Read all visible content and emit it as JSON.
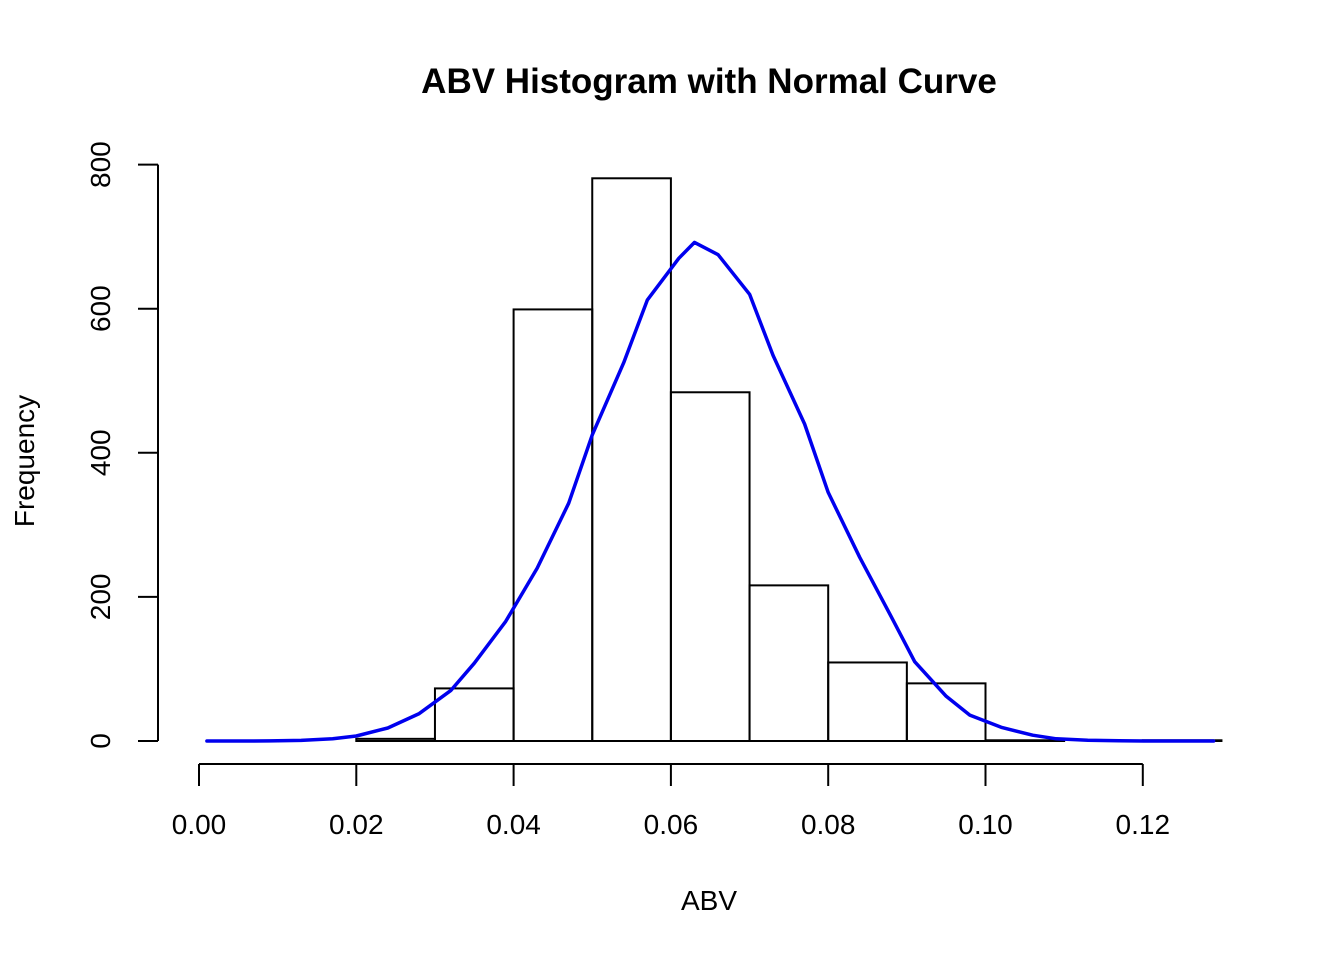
{
  "chart_data": {
    "type": "bar",
    "title": "ABV Histogram with Normal Curve",
    "xlabel": "ABV",
    "ylabel": "Frequency",
    "xlim": [
      0.0,
      0.13
    ],
    "ylim": [
      0,
      800
    ],
    "x_ticks": [
      "0.00",
      "0.02",
      "0.04",
      "0.06",
      "0.08",
      "0.10",
      "0.12"
    ],
    "y_ticks": [
      "0",
      "200",
      "400",
      "600",
      "800"
    ],
    "grid": false,
    "legend": "none",
    "bins": [
      {
        "start": 0.0,
        "end": 0.01,
        "value": 0
      },
      {
        "start": 0.01,
        "end": 0.02,
        "value": 0
      },
      {
        "start": 0.02,
        "end": 0.03,
        "value": 3
      },
      {
        "start": 0.03,
        "end": 0.04,
        "value": 73
      },
      {
        "start": 0.04,
        "end": 0.05,
        "value": 599
      },
      {
        "start": 0.05,
        "end": 0.06,
        "value": 781
      },
      {
        "start": 0.06,
        "end": 0.07,
        "value": 484
      },
      {
        "start": 0.07,
        "end": 0.08,
        "value": 216
      },
      {
        "start": 0.08,
        "end": 0.09,
        "value": 109
      },
      {
        "start": 0.09,
        "end": 0.1,
        "value": 80
      },
      {
        "start": 0.1,
        "end": 0.11,
        "value": 1
      },
      {
        "start": 0.11,
        "end": 0.12,
        "value": 0
      },
      {
        "start": 0.12,
        "end": 0.13,
        "value": 1
      }
    ],
    "series": [
      {
        "type": "line",
        "points": [
          [
            0.001,
            0
          ],
          [
            0.005,
            0
          ],
          [
            0.009,
            0.2
          ],
          [
            0.013,
            0.9
          ],
          [
            0.017,
            3
          ],
          [
            0.02,
            7
          ],
          [
            0.024,
            18
          ],
          [
            0.028,
            38
          ],
          [
            0.032,
            70
          ],
          [
            0.035,
            108
          ],
          [
            0.039,
            166
          ],
          [
            0.043,
            240
          ],
          [
            0.047,
            330
          ],
          [
            0.05,
            425
          ],
          [
            0.054,
            525
          ],
          [
            0.057,
            612
          ],
          [
            0.061,
            670
          ],
          [
            0.063,
            692
          ],
          [
            0.066,
            675
          ],
          [
            0.07,
            620
          ],
          [
            0.073,
            535
          ],
          [
            0.077,
            440
          ],
          [
            0.08,
            345
          ],
          [
            0.084,
            255
          ],
          [
            0.088,
            173
          ],
          [
            0.091,
            110
          ],
          [
            0.095,
            62
          ],
          [
            0.098,
            36
          ],
          [
            0.102,
            19
          ],
          [
            0.106,
            8
          ],
          [
            0.109,
            3
          ],
          [
            0.113,
            1
          ],
          [
            0.117,
            0.3
          ],
          [
            0.121,
            0
          ],
          [
            0.125,
            0
          ],
          [
            0.129,
            0
          ]
        ],
        "color": "#0000ee"
      }
    ]
  }
}
